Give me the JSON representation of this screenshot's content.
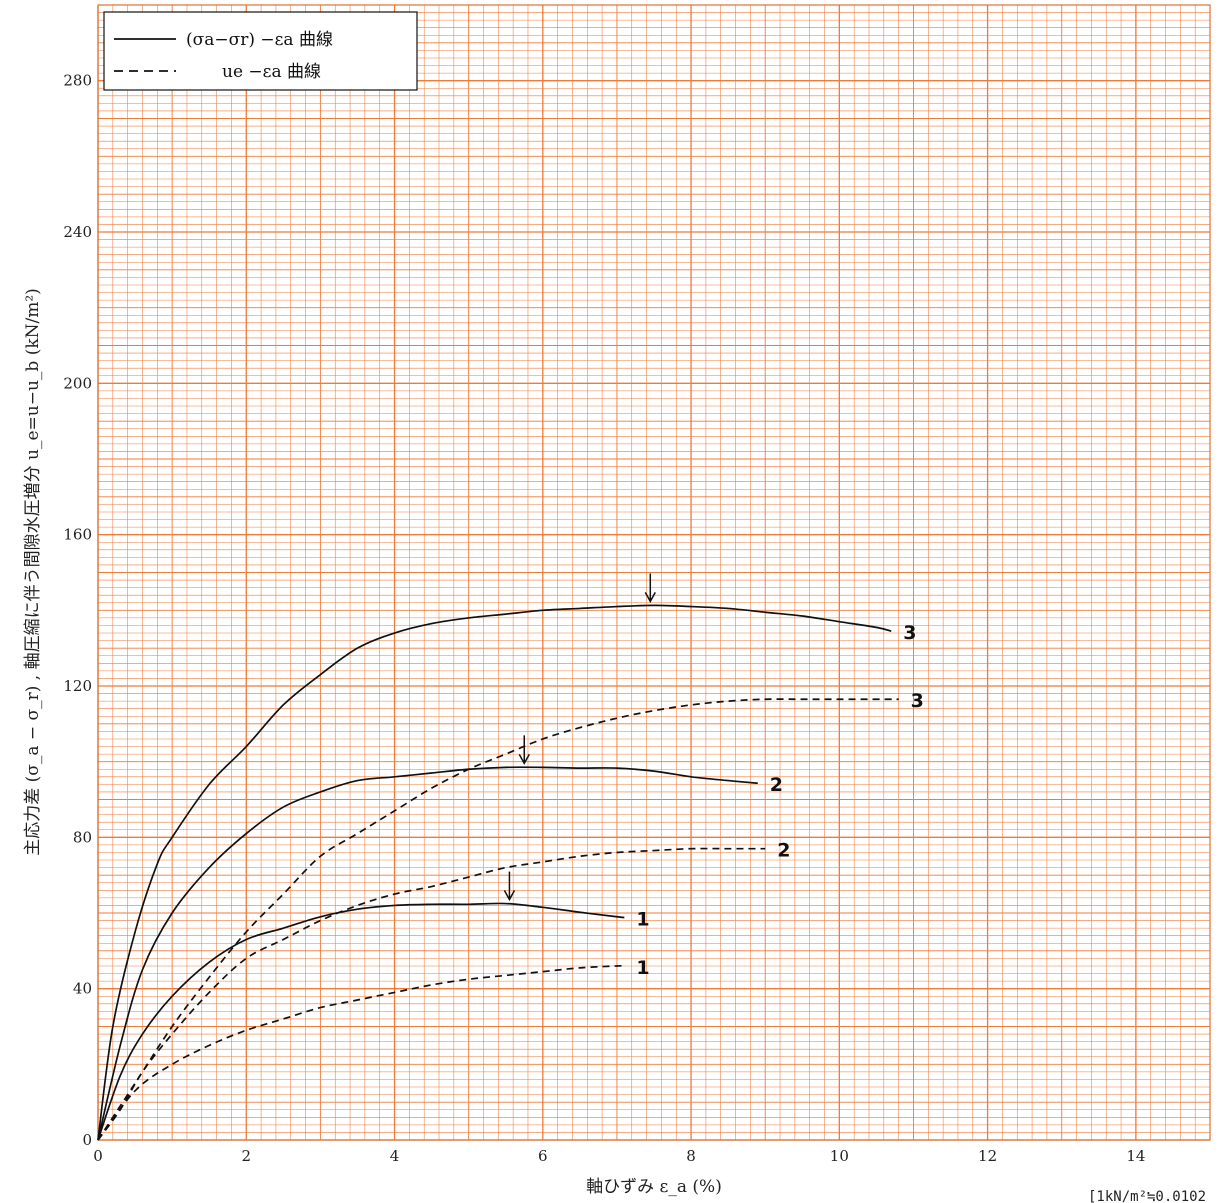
{
  "chart_data": {
    "type": "line",
    "title": "",
    "xlabel": "軸ひずみ ε_a (%)",
    "ylabel": "主応力差 (σ_a − σ_r) , 軸圧縮に伴う間隙水圧増分 u_e=u−u_b (kN/m²)",
    "xlim": [
      0,
      15
    ],
    "ylim": [
      0,
      300
    ],
    "xticks": [
      "0",
      "2",
      "4",
      "6",
      "8",
      "10",
      "12",
      "14"
    ],
    "yticks": [
      "0",
      "40",
      "80",
      "120",
      "160",
      "200",
      "240",
      "280"
    ],
    "grid": true,
    "grid_color": "#f07a38",
    "legend_position": "top-left",
    "legend": [
      {
        "style": "solid",
        "label": "(σa−σr) −εa 曲線"
      },
      {
        "style": "dashed",
        "label": "ue −εa 曲線"
      }
    ],
    "series": [
      {
        "label": "1",
        "style": "solid",
        "x": [
          0,
          0.3,
          0.6,
          1.0,
          1.5,
          2.0,
          2.5,
          3.0,
          3.5,
          4.0,
          4.5,
          5.0,
          5.5,
          6.0,
          6.5,
          7.0,
          7.1
        ],
        "y": [
          0,
          17,
          28,
          38,
          47,
          53,
          56,
          59,
          61,
          62,
          62.3,
          62.3,
          62.5,
          61.5,
          60.2,
          59,
          58.8
        ]
      },
      {
        "label": "1",
        "style": "dashed",
        "x": [
          0,
          0.5,
          1.0,
          1.5,
          2.0,
          2.5,
          3.0,
          3.5,
          4.0,
          4.5,
          5.0,
          5.5,
          6.0,
          6.5,
          7.0,
          7.1
        ],
        "y": [
          0,
          13,
          20,
          25,
          29,
          32,
          35,
          37,
          39,
          41,
          42.5,
          43.5,
          44.5,
          45.5,
          46,
          46
        ]
      },
      {
        "label": "2",
        "style": "solid",
        "x": [
          0,
          0.3,
          0.6,
          1.0,
          1.5,
          2.0,
          2.5,
          3.0,
          3.5,
          4.0,
          4.5,
          5.0,
          5.5,
          6.0,
          6.5,
          7.0,
          7.5,
          8.0,
          8.5,
          8.9
        ],
        "y": [
          0,
          25,
          45,
          60,
          72,
          81,
          88,
          92,
          95,
          96,
          97,
          98,
          98.5,
          98.5,
          98.3,
          98.3,
          97.5,
          96,
          95,
          94.3
        ]
      },
      {
        "label": "2",
        "style": "dashed",
        "x": [
          0,
          0.3,
          0.6,
          1.0,
          1.5,
          2.0,
          2.5,
          3.0,
          3.5,
          4.0,
          4.5,
          5.0,
          5.5,
          6.0,
          6.5,
          7.0,
          7.5,
          8.0,
          8.5,
          9.0
        ],
        "y": [
          0,
          8,
          18,
          28,
          39,
          48,
          53,
          58,
          62,
          65,
          67,
          69.5,
          72,
          73.5,
          75,
          76,
          76.5,
          77,
          77,
          77
        ]
      },
      {
        "label": "3",
        "style": "solid",
        "x": [
          0,
          0.2,
          0.5,
          0.8,
          1.0,
          1.5,
          2.0,
          2.5,
          3.0,
          3.5,
          4.0,
          4.5,
          5.0,
          5.5,
          6.0,
          6.5,
          7.0,
          7.5,
          8.0,
          8.5,
          9.0,
          9.5,
          10.0,
          10.5,
          10.7
        ],
        "y": [
          0,
          30,
          55,
          73,
          80,
          94,
          104,
          115,
          123,
          130,
          134,
          136.5,
          138,
          139,
          140,
          140.5,
          141,
          141.3,
          141,
          140.5,
          139.5,
          138.5,
          137,
          135.5,
          134.5
        ]
      },
      {
        "label": "3",
        "style": "dashed",
        "x": [
          0,
          0.5,
          1.0,
          1.5,
          2.0,
          2.5,
          3.0,
          3.5,
          4.0,
          4.5,
          5.0,
          5.5,
          6.0,
          6.5,
          7.0,
          7.5,
          8.0,
          8.5,
          9.0,
          9.5,
          10.0,
          10.5,
          10.8
        ],
        "y": [
          0,
          15,
          30,
          43,
          55,
          65,
          75,
          81,
          87,
          93,
          98,
          102,
          106,
          109,
          111.5,
          113.5,
          115,
          116,
          116.5,
          116.5,
          116.5,
          116.5,
          116.5
        ]
      }
    ],
    "peak_markers": [
      {
        "series": "1",
        "x": 5.55,
        "y": 62.5
      },
      {
        "series": "2",
        "x": 5.75,
        "y": 98.5
      },
      {
        "series": "3",
        "x": 7.45,
        "y": 141.3
      }
    ],
    "footnote": "[1kN/m²≒0.0102"
  }
}
